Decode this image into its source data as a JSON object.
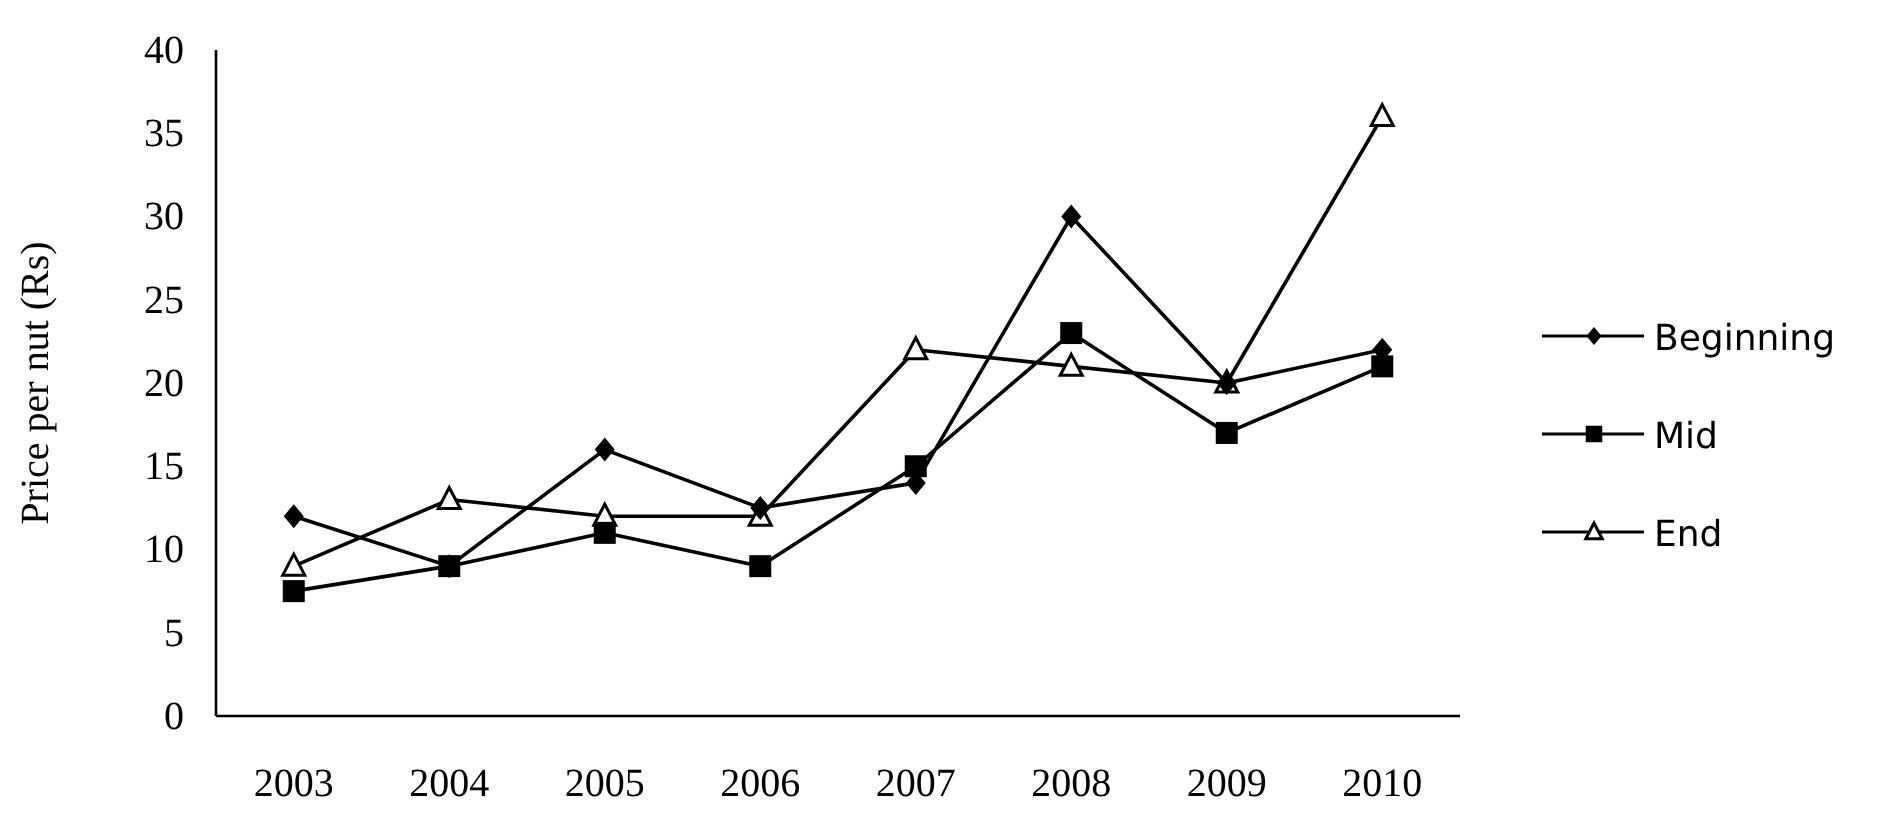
{
  "chart_data": {
    "type": "line",
    "ylabel": "Price per nut (Rs)",
    "categories": [
      "2003",
      "2004",
      "2005",
      "2006",
      "2007",
      "2008",
      "2009",
      "2010"
    ],
    "series": [
      {
        "name": "Beginning",
        "color": "#000000",
        "marker": "diamond",
        "values": [
          12,
          9,
          16,
          12.5,
          14,
          30,
          20,
          22
        ]
      },
      {
        "name": "Mid",
        "color": "#000000",
        "marker": "square",
        "values": [
          7.5,
          9,
          11,
          9,
          15,
          23,
          17,
          21
        ]
      },
      {
        "name": "End",
        "color": "#000000",
        "marker": "triangle",
        "values": [
          9,
          13,
          12,
          12,
          22,
          21,
          20,
          36
        ]
      }
    ],
    "ylim": [
      0,
      40
    ],
    "yticks": [
      0,
      5,
      10,
      15,
      20,
      25,
      30,
      35,
      40
    ],
    "grid": false,
    "legend": "right",
    "line_style": "solid"
  }
}
